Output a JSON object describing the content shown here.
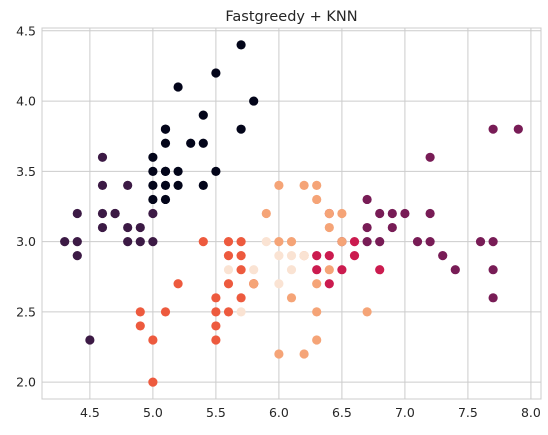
{
  "chart_data": {
    "type": "scatter",
    "title": "Fastgreedy + KNN",
    "xlabel": "",
    "ylabel": "",
    "xlim": [
      4.12,
      8.08
    ],
    "ylim": [
      1.88,
      4.52
    ],
    "xticks": [
      "4.5",
      "5.0",
      "5.5",
      "6.0",
      "6.5",
      "7.0",
      "7.5",
      "8.0"
    ],
    "yticks": [
      "2.0",
      "2.5",
      "3.0",
      "3.5",
      "4.0",
      "4.5"
    ],
    "grid": true,
    "legend": "none",
    "cluster_colors": [
      "#03051a",
      "#3c1a45",
      "#781c56",
      "#cb1b4f",
      "#ed5a3e",
      "#f5a477",
      "#fae3d3"
    ],
    "points": [
      {
        "x": 5.7,
        "y": 4.4,
        "c": 0
      },
      {
        "x": 5.5,
        "y": 4.2,
        "c": 0
      },
      {
        "x": 5.2,
        "y": 4.1,
        "c": 0
      },
      {
        "x": 5.8,
        "y": 4.0,
        "c": 0
      },
      {
        "x": 5.4,
        "y": 3.9,
        "c": 0
      },
      {
        "x": 5.1,
        "y": 3.8,
        "c": 0
      },
      {
        "x": 5.7,
        "y": 3.8,
        "c": 0
      },
      {
        "x": 5.1,
        "y": 3.7,
        "c": 0
      },
      {
        "x": 5.3,
        "y": 3.7,
        "c": 0
      },
      {
        "x": 5.4,
        "y": 3.7,
        "c": 0
      },
      {
        "x": 5.0,
        "y": 3.6,
        "c": 0
      },
      {
        "x": 5.0,
        "y": 3.5,
        "c": 0
      },
      {
        "x": 5.1,
        "y": 3.5,
        "c": 0
      },
      {
        "x": 5.2,
        "y": 3.5,
        "c": 0
      },
      {
        "x": 5.5,
        "y": 3.5,
        "c": 0
      },
      {
        "x": 5.0,
        "y": 3.4,
        "c": 0
      },
      {
        "x": 5.1,
        "y": 3.4,
        "c": 0
      },
      {
        "x": 5.2,
        "y": 3.4,
        "c": 0
      },
      {
        "x": 5.4,
        "y": 3.4,
        "c": 0
      },
      {
        "x": 5.0,
        "y": 3.3,
        "c": 0
      },
      {
        "x": 5.1,
        "y": 3.3,
        "c": 0
      },
      {
        "x": 5.1,
        "y": 3.8,
        "c": 0
      },
      {
        "x": 5.1,
        "y": 3.5,
        "c": 0
      },
      {
        "x": 4.6,
        "y": 3.6,
        "c": 1
      },
      {
        "x": 4.6,
        "y": 3.4,
        "c": 1
      },
      {
        "x": 4.8,
        "y": 3.4,
        "c": 1
      },
      {
        "x": 4.4,
        "y": 3.2,
        "c": 1
      },
      {
        "x": 4.6,
        "y": 3.2,
        "c": 1
      },
      {
        "x": 4.7,
        "y": 3.2,
        "c": 1
      },
      {
        "x": 5.0,
        "y": 3.2,
        "c": 1
      },
      {
        "x": 4.6,
        "y": 3.1,
        "c": 1
      },
      {
        "x": 4.8,
        "y": 3.1,
        "c": 1
      },
      {
        "x": 4.9,
        "y": 3.1,
        "c": 1
      },
      {
        "x": 4.3,
        "y": 3.0,
        "c": 1
      },
      {
        "x": 4.4,
        "y": 3.0,
        "c": 1
      },
      {
        "x": 4.8,
        "y": 3.0,
        "c": 1
      },
      {
        "x": 4.9,
        "y": 3.0,
        "c": 1
      },
      {
        "x": 5.0,
        "y": 3.0,
        "c": 1
      },
      {
        "x": 4.4,
        "y": 2.9,
        "c": 1
      },
      {
        "x": 4.5,
        "y": 2.3,
        "c": 1
      },
      {
        "x": 4.7,
        "y": 3.2,
        "c": 1
      },
      {
        "x": 7.7,
        "y": 3.8,
        "c": 2
      },
      {
        "x": 7.9,
        "y": 3.8,
        "c": 2
      },
      {
        "x": 7.2,
        "y": 3.6,
        "c": 2
      },
      {
        "x": 6.7,
        "y": 3.3,
        "c": 2
      },
      {
        "x": 6.8,
        "y": 3.2,
        "c": 2
      },
      {
        "x": 6.9,
        "y": 3.2,
        "c": 2
      },
      {
        "x": 7.2,
        "y": 3.2,
        "c": 2
      },
      {
        "x": 6.7,
        "y": 3.1,
        "c": 2
      },
      {
        "x": 6.9,
        "y": 3.1,
        "c": 2
      },
      {
        "x": 7.0,
        "y": 3.2,
        "c": 2
      },
      {
        "x": 6.5,
        "y": 3.0,
        "c": 2
      },
      {
        "x": 6.7,
        "y": 3.0,
        "c": 2
      },
      {
        "x": 6.8,
        "y": 3.0,
        "c": 2
      },
      {
        "x": 7.1,
        "y": 3.0,
        "c": 2
      },
      {
        "x": 7.2,
        "y": 3.0,
        "c": 2
      },
      {
        "x": 7.6,
        "y": 3.0,
        "c": 2
      },
      {
        "x": 7.7,
        "y": 3.0,
        "c": 2
      },
      {
        "x": 7.3,
        "y": 2.9,
        "c": 2
      },
      {
        "x": 7.4,
        "y": 2.8,
        "c": 2
      },
      {
        "x": 7.7,
        "y": 2.8,
        "c": 2
      },
      {
        "x": 7.7,
        "y": 2.6,
        "c": 2
      },
      {
        "x": 6.3,
        "y": 2.9,
        "c": 3
      },
      {
        "x": 6.4,
        "y": 2.9,
        "c": 3
      },
      {
        "x": 6.6,
        "y": 2.9,
        "c": 3
      },
      {
        "x": 6.3,
        "y": 2.8,
        "c": 3
      },
      {
        "x": 6.5,
        "y": 2.8,
        "c": 3
      },
      {
        "x": 6.8,
        "y": 2.8,
        "c": 3
      },
      {
        "x": 6.4,
        "y": 2.7,
        "c": 3
      },
      {
        "x": 6.6,
        "y": 3.0,
        "c": 3
      },
      {
        "x": 6.4,
        "y": 3.2,
        "c": 3
      },
      {
        "x": 5.4,
        "y": 3.0,
        "c": 4
      },
      {
        "x": 5.6,
        "y": 3.0,
        "c": 4
      },
      {
        "x": 5.7,
        "y": 3.0,
        "c": 4
      },
      {
        "x": 5.6,
        "y": 2.9,
        "c": 4
      },
      {
        "x": 5.7,
        "y": 2.9,
        "c": 4
      },
      {
        "x": 5.7,
        "y": 2.8,
        "c": 4
      },
      {
        "x": 5.2,
        "y": 2.7,
        "c": 4
      },
      {
        "x": 5.8,
        "y": 2.7,
        "c": 4
      },
      {
        "x": 5.6,
        "y": 2.7,
        "c": 4
      },
      {
        "x": 5.5,
        "y": 2.6,
        "c": 4
      },
      {
        "x": 5.7,
        "y": 2.6,
        "c": 4
      },
      {
        "x": 4.9,
        "y": 2.5,
        "c": 4
      },
      {
        "x": 5.1,
        "y": 2.5,
        "c": 4
      },
      {
        "x": 5.5,
        "y": 2.5,
        "c": 4
      },
      {
        "x": 5.6,
        "y": 2.5,
        "c": 4
      },
      {
        "x": 4.9,
        "y": 2.4,
        "c": 4
      },
      {
        "x": 5.5,
        "y": 2.4,
        "c": 4
      },
      {
        "x": 5.0,
        "y": 2.3,
        "c": 4
      },
      {
        "x": 5.5,
        "y": 2.3,
        "c": 4
      },
      {
        "x": 5.0,
        "y": 2.0,
        "c": 4
      },
      {
        "x": 5.8,
        "y": 2.7,
        "c": 4
      },
      {
        "x": 6.0,
        "y": 3.4,
        "c": 5
      },
      {
        "x": 6.2,
        "y": 3.4,
        "c": 5
      },
      {
        "x": 6.3,
        "y": 3.4,
        "c": 5
      },
      {
        "x": 6.3,
        "y": 3.3,
        "c": 5
      },
      {
        "x": 5.9,
        "y": 3.2,
        "c": 5
      },
      {
        "x": 6.4,
        "y": 3.2,
        "c": 5
      },
      {
        "x": 6.5,
        "y": 3.2,
        "c": 5
      },
      {
        "x": 6.4,
        "y": 3.1,
        "c": 5
      },
      {
        "x": 6.0,
        "y": 3.0,
        "c": 5
      },
      {
        "x": 6.1,
        "y": 3.0,
        "c": 5
      },
      {
        "x": 6.5,
        "y": 3.0,
        "c": 5
      },
      {
        "x": 6.2,
        "y": 2.9,
        "c": 5
      },
      {
        "x": 6.4,
        "y": 2.8,
        "c": 5
      },
      {
        "x": 6.3,
        "y": 2.7,
        "c": 5
      },
      {
        "x": 6.1,
        "y": 2.6,
        "c": 5
      },
      {
        "x": 6.3,
        "y": 2.5,
        "c": 5
      },
      {
        "x": 6.7,
        "y": 2.5,
        "c": 5
      },
      {
        "x": 6.3,
        "y": 2.3,
        "c": 5
      },
      {
        "x": 6.0,
        "y": 2.2,
        "c": 5
      },
      {
        "x": 6.2,
        "y": 2.2,
        "c": 5
      },
      {
        "x": 5.8,
        "y": 2.7,
        "c": 5
      },
      {
        "x": 5.9,
        "y": 3.0,
        "c": 6
      },
      {
        "x": 6.0,
        "y": 2.9,
        "c": 6
      },
      {
        "x": 6.1,
        "y": 2.9,
        "c": 6
      },
      {
        "x": 6.2,
        "y": 2.9,
        "c": 6
      },
      {
        "x": 5.6,
        "y": 2.8,
        "c": 6
      },
      {
        "x": 5.8,
        "y": 2.8,
        "c": 6
      },
      {
        "x": 6.1,
        "y": 2.8,
        "c": 6
      },
      {
        "x": 6.0,
        "y": 2.7,
        "c": 6
      },
      {
        "x": 5.7,
        "y": 2.5,
        "c": 6
      }
    ]
  }
}
